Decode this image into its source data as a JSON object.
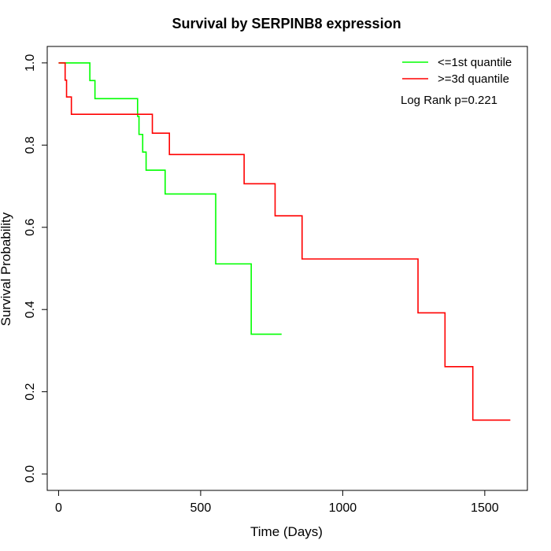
{
  "chart_data": {
    "type": "line",
    "title": "Survival by SERPINB8 expression",
    "xlabel": "Time (Days)",
    "ylabel": "Survival Probability",
    "xlim": [
      -40,
      1650
    ],
    "ylim": [
      -0.04,
      1.04
    ],
    "x_ticks": [
      {
        "value": 0,
        "label": "0"
      },
      {
        "value": 500,
        "label": "500"
      },
      {
        "value": 1000,
        "label": "1000"
      },
      {
        "value": 1500,
        "label": "1500"
      }
    ],
    "y_ticks": [
      {
        "value": 0,
        "label": "0.0"
      },
      {
        "value": 0.2,
        "label": "0.2"
      },
      {
        "value": 0.4,
        "label": "0.4"
      },
      {
        "value": 0.6,
        "label": "0.6"
      },
      {
        "value": 0.8,
        "label": "0.8"
      },
      {
        "value": 1.0,
        "label": "1.0"
      }
    ],
    "grid": false,
    "legend_position": "top-right",
    "annotation": "Log Rank p=0.221",
    "series": [
      {
        "name": "<=1st quantile",
        "color": "#00ff00",
        "step": true,
        "x": [
          0,
          110,
          128,
          278,
          283,
          296,
          308,
          318,
          375,
          553,
          678,
          785
        ],
        "y": [
          1.0,
          0.957,
          0.913,
          0.87,
          0.826,
          0.783,
          0.739,
          0.739,
          0.681,
          0.511,
          0.34,
          0.34
        ]
      },
      {
        "name": ">=3d quantile",
        "color": "#ff0000",
        "step": true,
        "x": [
          0,
          23,
          28,
          45,
          330,
          390,
          653,
          762,
          857,
          1265,
          1360,
          1458,
          1590
        ],
        "y": [
          1.0,
          0.958,
          0.917,
          0.875,
          0.829,
          0.777,
          0.706,
          0.628,
          0.523,
          0.392,
          0.261,
          0.131,
          0.131
        ]
      }
    ]
  }
}
